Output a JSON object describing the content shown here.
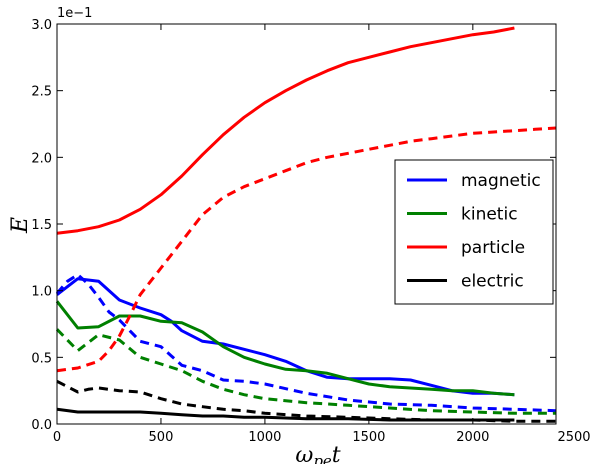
{
  "chart_data": {
    "type": "line",
    "xlabel": "ω",
    "xlabel_sub": "pe",
    "xlabel_suffix": "t",
    "ylabel": "E",
    "exponent_label": "1e−1",
    "xlim": [
      0,
      2400
    ],
    "ylim": [
      0,
      3.0
    ],
    "x_ticks": [
      0,
      500,
      1000,
      1500,
      2000,
      2500
    ],
    "x_tick_labels": [
      "0",
      "500",
      "1000",
      "1500",
      "2000",
      "2500"
    ],
    "y_ticks": [
      0,
      0.5,
      1.0,
      1.5,
      2.0,
      2.5,
      3.0
    ],
    "y_tick_labels": [
      "0.0",
      "0.5",
      "1.0",
      "1.5",
      "2.0",
      "2.5",
      "3.0"
    ],
    "grid": false,
    "legend_position": "center-right",
    "series": [
      {
        "name": "magnetic",
        "color": "#0000ff",
        "style": "solid",
        "x": [
          0,
          100,
          200,
          300,
          400,
          500,
          550,
          600,
          700,
          800,
          900,
          1000,
          1100,
          1200,
          1300,
          1400,
          1500,
          1600,
          1700,
          1800,
          1900,
          2000,
          2100,
          2200
        ],
        "y": [
          0.97,
          1.09,
          1.07,
          0.93,
          0.87,
          0.82,
          0.77,
          0.7,
          0.62,
          0.6,
          0.56,
          0.52,
          0.47,
          0.4,
          0.35,
          0.34,
          0.34,
          0.34,
          0.33,
          0.29,
          0.25,
          0.23,
          0.23,
          0.22
        ]
      },
      {
        "name": "kinetic",
        "color": "#008000",
        "style": "solid",
        "x": [
          0,
          100,
          200,
          300,
          400,
          500,
          600,
          700,
          800,
          900,
          1000,
          1100,
          1200,
          1300,
          1400,
          1500,
          1600,
          1700,
          1800,
          1900,
          2000,
          2100,
          2200
        ],
        "y": [
          0.92,
          0.72,
          0.73,
          0.81,
          0.81,
          0.77,
          0.76,
          0.69,
          0.58,
          0.5,
          0.45,
          0.41,
          0.4,
          0.38,
          0.34,
          0.3,
          0.28,
          0.27,
          0.26,
          0.25,
          0.25,
          0.23,
          0.22
        ]
      },
      {
        "name": "particle",
        "color": "#ff0000",
        "style": "solid",
        "x": [
          0,
          100,
          200,
          300,
          400,
          500,
          600,
          700,
          800,
          900,
          1000,
          1100,
          1200,
          1300,
          1400,
          1500,
          1600,
          1700,
          1800,
          1900,
          2000,
          2100,
          2200
        ],
        "y": [
          1.43,
          1.45,
          1.48,
          1.53,
          1.61,
          1.72,
          1.86,
          2.02,
          2.17,
          2.3,
          2.41,
          2.5,
          2.58,
          2.65,
          2.71,
          2.75,
          2.79,
          2.83,
          2.86,
          2.89,
          2.92,
          2.94,
          2.97
        ]
      },
      {
        "name": "electric",
        "color": "#000000",
        "style": "solid",
        "x": [
          0,
          100,
          200,
          300,
          400,
          500,
          600,
          700,
          800,
          900,
          1000,
          1200,
          1400,
          1600,
          1800,
          2000,
          2200
        ],
        "y": [
          0.11,
          0.09,
          0.09,
          0.09,
          0.09,
          0.08,
          0.07,
          0.06,
          0.06,
          0.05,
          0.05,
          0.04,
          0.04,
          0.03,
          0.03,
          0.03,
          0.03
        ]
      },
      {
        "color": "#0000ff",
        "style": "dashed",
        "x": [
          0,
          50,
          100,
          150,
          200,
          250,
          300,
          350,
          400,
          500,
          550,
          600,
          700,
          800,
          900,
          1000,
          1200,
          1400,
          1600,
          1800,
          2000,
          2200,
          2400
        ],
        "y": [
          0.98,
          1.07,
          1.12,
          1.05,
          0.95,
          0.84,
          0.78,
          0.7,
          0.62,
          0.58,
          0.51,
          0.44,
          0.4,
          0.33,
          0.32,
          0.3,
          0.23,
          0.18,
          0.15,
          0.14,
          0.12,
          0.11,
          0.1
        ]
      },
      {
        "color": "#008000",
        "style": "dashed",
        "x": [
          0,
          100,
          200,
          300,
          400,
          500,
          600,
          700,
          800,
          900,
          1000,
          1200,
          1400,
          1600,
          1800,
          2000,
          2200,
          2400
        ],
        "y": [
          0.71,
          0.55,
          0.67,
          0.63,
          0.5,
          0.45,
          0.4,
          0.32,
          0.26,
          0.22,
          0.19,
          0.16,
          0.14,
          0.12,
          0.1,
          0.09,
          0.08,
          0.08
        ]
      },
      {
        "color": "#ff0000",
        "style": "dashed",
        "x": [
          0,
          100,
          200,
          250,
          300,
          350,
          400,
          450,
          500,
          550,
          600,
          650,
          700,
          800,
          900,
          1000,
          1100,
          1200,
          1300,
          1400,
          1500,
          1600,
          1700,
          1800,
          1900,
          2000,
          2100,
          2200,
          2300,
          2400
        ],
        "y": [
          0.4,
          0.42,
          0.47,
          0.55,
          0.66,
          0.81,
          0.97,
          1.07,
          1.17,
          1.27,
          1.37,
          1.47,
          1.57,
          1.7,
          1.78,
          1.84,
          1.9,
          1.96,
          2.0,
          2.03,
          2.06,
          2.09,
          2.12,
          2.14,
          2.16,
          2.18,
          2.19,
          2.2,
          2.21,
          2.22
        ]
      },
      {
        "color": "#000000",
        "style": "dashed",
        "x": [
          0,
          100,
          150,
          200,
          300,
          400,
          500,
          600,
          700,
          800,
          900,
          1000,
          1200,
          1400,
          1600,
          1800,
          2000,
          2200,
          2400
        ],
        "y": [
          0.32,
          0.24,
          0.26,
          0.27,
          0.25,
          0.24,
          0.19,
          0.15,
          0.13,
          0.11,
          0.1,
          0.08,
          0.06,
          0.05,
          0.04,
          0.03,
          0.03,
          0.02,
          0.02
        ]
      }
    ]
  }
}
